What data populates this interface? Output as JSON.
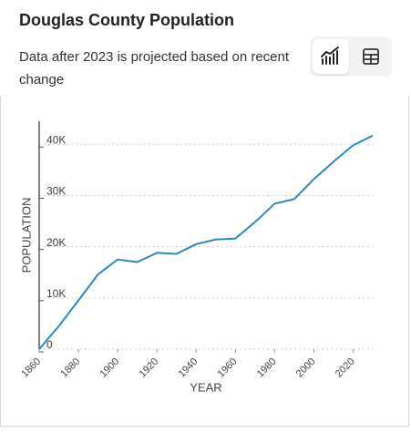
{
  "header": {
    "title": "Douglas County Population",
    "subtitle": "Data after 2023 is projected based on recent change"
  },
  "chart_data": {
    "type": "line",
    "x_label": "YEAR",
    "y_label": "POPULATION",
    "x": [
      1860,
      1870,
      1880,
      1890,
      1900,
      1910,
      1920,
      1930,
      1940,
      1950,
      1960,
      1970,
      1980,
      1990,
      2000,
      2010,
      2020,
      2030
    ],
    "series": [
      {
        "color": "#2a8ac0",
        "values": [
          0,
          4500,
          9500,
          14600,
          17500,
          17000,
          18800,
          18600,
          20500,
          21400,
          21600,
          24800,
          28400,
          29300,
          33200,
          36600,
          39800,
          41700
        ]
      }
    ],
    "xlim": [
      1860,
      2030
    ],
    "xticks": [
      1860,
      1880,
      1900,
      1920,
      1940,
      1960,
      1980,
      2000,
      2020
    ],
    "ylim": [
      0,
      44500
    ],
    "yticks": [
      0,
      {
        "value": 10000,
        "label": "10K"
      },
      {
        "value": 20000,
        "label": "20K"
      },
      {
        "value": 30000,
        "label": "30K"
      },
      {
        "value": 40000,
        "label": "40K"
      }
    ],
    "grid": true
  }
}
